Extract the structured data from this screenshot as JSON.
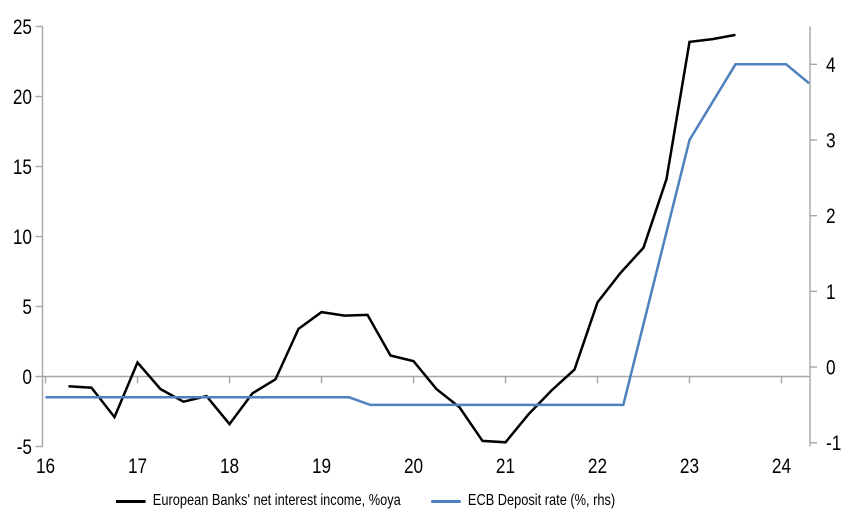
{
  "chart_data": {
    "type": "line",
    "title": "",
    "x_axis": {
      "tick_values": [
        16,
        17,
        18,
        19,
        20,
        21,
        22,
        23,
        24
      ],
      "tick_labels": [
        "16",
        "17",
        "18",
        "19",
        "20",
        "21",
        "22",
        "23",
        "24"
      ],
      "range": [
        15.967,
        24.31
      ],
      "axis_line_at_left_value": 0,
      "labels_position": "bottom"
    },
    "left_axis": {
      "tick_values": [
        25,
        20,
        15,
        10,
        5,
        0,
        -5
      ],
      "range": [
        -5,
        25
      ]
    },
    "right_axis": {
      "tick_values": [
        4,
        3,
        2,
        1,
        0,
        -1
      ],
      "range": [
        -1.05,
        4.5
      ]
    },
    "grid": "none (horizontal zero line only)",
    "legend_position": "bottom-center",
    "series": [
      {
        "name": "European Banks' net interest income, %oya",
        "color": "#000000",
        "axis": "left",
        "x": [
          16.25,
          16.5,
          16.75,
          17.0,
          17.25,
          17.5,
          17.75,
          18.0,
          18.25,
          18.5,
          18.75,
          19.0,
          19.25,
          19.5,
          19.75,
          20.0,
          20.25,
          20.5,
          20.75,
          21.0,
          21.25,
          21.5,
          21.75,
          22.0,
          22.25,
          22.5,
          22.75,
          23.0,
          23.25,
          23.5
        ],
        "values": [
          -0.7,
          -0.8,
          -2.9,
          1.0,
          -0.9,
          -1.8,
          -1.4,
          -3.4,
          -1.2,
          -0.2,
          3.4,
          4.6,
          4.35,
          4.4,
          1.5,
          1.1,
          -0.9,
          -2.2,
          -4.6,
          -4.7,
          -2.7,
          -1.0,
          0.5,
          5.3,
          7.4,
          9.2,
          14.1,
          23.9,
          24.1,
          24.4
        ]
      },
      {
        "name": "ECB Deposit rate (%, rhs)",
        "color": "#4E81BD",
        "axis": "right",
        "x": [
          16.0,
          19.3,
          19.53,
          22.28,
          23.0,
          23.5,
          24.05,
          24.3
        ],
        "values": [
          -0.4,
          -0.4,
          -0.5,
          -0.5,
          3.0,
          4.0,
          4.0,
          3.75
        ]
      }
    ],
    "colors": {
      "axis": "#A6A6A6",
      "zero_line": "#A6A6A6",
      "text": "#000000"
    }
  }
}
